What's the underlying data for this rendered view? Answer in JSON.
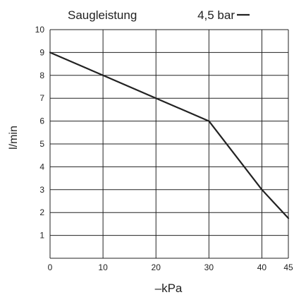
{
  "chart_data": {
    "type": "line",
    "title": "Saugleistung",
    "xlabel": "–kPa",
    "ylabel": "l/min",
    "xlim": [
      0,
      45
    ],
    "ylim": [
      0,
      10
    ],
    "x_ticks": [
      0,
      10,
      20,
      30,
      40,
      45
    ],
    "y_ticks": [
      1,
      2,
      3,
      4,
      5,
      6,
      7,
      8,
      9,
      10
    ],
    "grid": true,
    "legend_position": "top-right",
    "series": [
      {
        "name": "4,5 bar",
        "color": "#222222",
        "points": [
          {
            "x": 0,
            "y": 9
          },
          {
            "x": 10,
            "y": 8
          },
          {
            "x": 20,
            "y": 7
          },
          {
            "x": 30,
            "y": 6
          },
          {
            "x": 40,
            "y": 3
          },
          {
            "x": 45,
            "y": 1.75
          }
        ]
      }
    ]
  }
}
